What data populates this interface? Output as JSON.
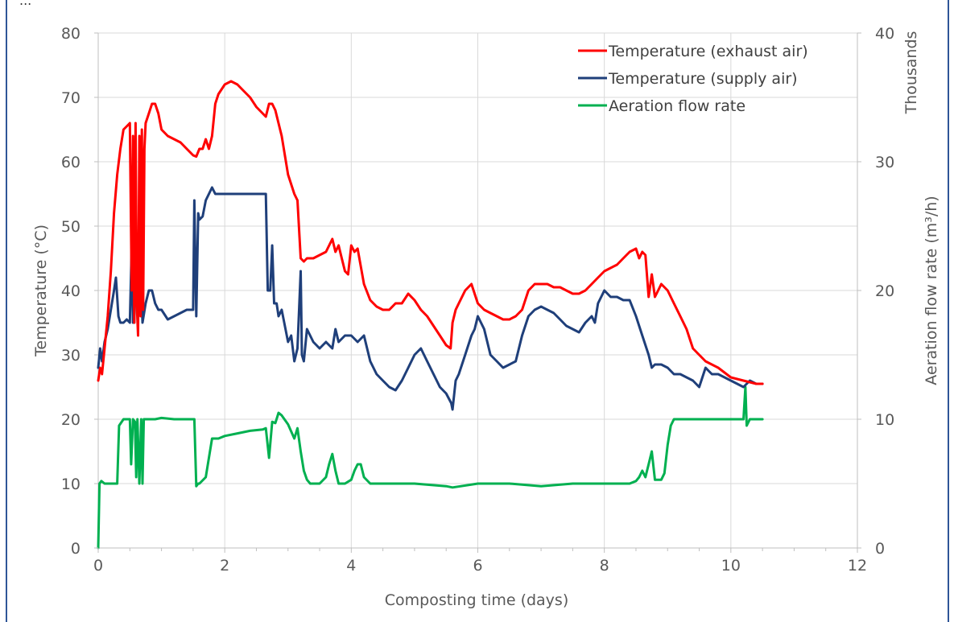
{
  "page": {
    "header_fragment": "...",
    "frame_color": "#2F5597"
  },
  "chart_data": {
    "type": "line",
    "title": "",
    "xlabel": "Composting time (days)",
    "ylabel": "Temperature (°C)",
    "y2label": "Aeration flow rate (m³/h)",
    "y2_units_note": "Thousands",
    "xlim": [
      0,
      12
    ],
    "ylim": [
      0,
      80
    ],
    "y2lim": [
      0,
      40
    ],
    "xticks": [
      "0",
      "2",
      "4",
      "6",
      "8",
      "10",
      "12"
    ],
    "yticks": [
      "0",
      "10",
      "20",
      "30",
      "40",
      "50",
      "60",
      "70",
      "80"
    ],
    "y2ticks": [
      "0",
      "10",
      "20",
      "30",
      "40"
    ],
    "grid": true,
    "legend_position": "top-right",
    "series": [
      {
        "name": "Temperature (exhaust air)",
        "color": "#FF0000",
        "axis": "left",
        "x": [
          0,
          0.03,
          0.06,
          0.1,
          0.15,
          0.2,
          0.25,
          0.3,
          0.35,
          0.4,
          0.45,
          0.5,
          0.53,
          0.55,
          0.57,
          0.59,
          0.61,
          0.63,
          0.65,
          0.67,
          0.69,
          0.71,
          0.73,
          0.75,
          0.8,
          0.85,
          0.9,
          0.95,
          1.0,
          1.1,
          1.2,
          1.3,
          1.4,
          1.5,
          1.55,
          1.6,
          1.65,
          1.7,
          1.75,
          1.8,
          1.85,
          1.9,
          2.0,
          2.1,
          2.2,
          2.3,
          2.4,
          2.5,
          2.6,
          2.65,
          2.7,
          2.75,
          2.8,
          2.9,
          3.0,
          3.1,
          3.15,
          3.2,
          3.25,
          3.3,
          3.4,
          3.5,
          3.6,
          3.7,
          3.75,
          3.8,
          3.85,
          3.9,
          3.95,
          4.0,
          4.05,
          4.1,
          4.2,
          4.3,
          4.4,
          4.5,
          4.6,
          4.7,
          4.8,
          4.9,
          5.0,
          5.1,
          5.2,
          5.3,
          5.4,
          5.5,
          5.57,
          5.6,
          5.65,
          5.7,
          5.8,
          5.9,
          6.0,
          6.1,
          6.2,
          6.3,
          6.4,
          6.5,
          6.6,
          6.7,
          6.8,
          6.9,
          7.0,
          7.1,
          7.2,
          7.3,
          7.4,
          7.5,
          7.6,
          7.7,
          7.8,
          7.9,
          8.0,
          8.1,
          8.2,
          8.3,
          8.4,
          8.5,
          8.55,
          8.6,
          8.65,
          8.7,
          8.75,
          8.8,
          8.85,
          8.9,
          9.0,
          9.1,
          9.2,
          9.3,
          9.4,
          9.5,
          9.6,
          9.8,
          10.0,
          10.2,
          10.4,
          10.5
        ],
        "y": [
          26,
          28,
          27,
          31,
          36,
          43,
          52,
          58,
          62,
          65,
          65.5,
          66,
          40,
          64,
          35,
          66,
          38,
          33,
          64,
          36,
          65,
          37,
          62,
          66,
          67.5,
          69,
          69,
          67.5,
          65,
          64,
          63.5,
          63,
          62,
          61,
          60.8,
          62,
          62,
          63.5,
          62,
          64,
          69,
          70.5,
          72,
          72.5,
          72,
          71,
          70,
          68.5,
          67.5,
          67,
          69,
          69,
          68,
          64,
          58,
          55,
          54,
          45,
          44.5,
          45,
          45,
          45.5,
          46,
          48,
          46,
          47,
          45,
          43,
          42.5,
          47,
          46,
          46.5,
          41,
          38.5,
          37.5,
          37,
          37,
          38,
          38,
          39.5,
          38.5,
          37,
          36,
          34.5,
          33,
          31.5,
          31,
          35,
          37,
          38,
          40,
          41,
          38,
          37,
          36.5,
          36,
          35.5,
          35.5,
          36,
          37,
          40,
          41,
          41,
          41,
          40.5,
          40.5,
          40,
          39.5,
          39.5,
          40,
          41,
          42,
          43,
          43.5,
          44,
          45,
          46,
          46.5,
          45,
          46,
          45.5,
          39,
          42.5,
          39,
          40,
          41,
          40,
          38,
          36,
          34,
          31,
          30,
          29,
          28,
          26.5,
          26,
          25.5,
          25.5
        ]
      },
      {
        "name": "Temperature (supply air)",
        "color": "#1F3F7A",
        "axis": "left",
        "x": [
          0,
          0.03,
          0.06,
          0.1,
          0.15,
          0.2,
          0.25,
          0.28,
          0.32,
          0.35,
          0.4,
          0.45,
          0.5,
          0.53,
          0.55,
          0.57,
          0.6,
          0.63,
          0.66,
          0.7,
          0.75,
          0.8,
          0.85,
          0.9,
          0.95,
          1.0,
          1.1,
          1.2,
          1.3,
          1.4,
          1.5,
          1.52,
          1.55,
          1.58,
          1.6,
          1.65,
          1.7,
          1.75,
          1.8,
          1.85,
          1.9,
          2.0,
          2.2,
          2.4,
          2.6,
          2.65,
          2.68,
          2.72,
          2.75,
          2.78,
          2.82,
          2.85,
          2.9,
          3.0,
          3.05,
          3.1,
          3.15,
          3.2,
          3.22,
          3.25,
          3.3,
          3.4,
          3.5,
          3.6,
          3.7,
          3.75,
          3.8,
          3.9,
          4.0,
          4.1,
          4.2,
          4.3,
          4.4,
          4.5,
          4.6,
          4.7,
          4.8,
          4.9,
          5.0,
          5.1,
          5.2,
          5.3,
          5.4,
          5.5,
          5.58,
          5.6,
          5.65,
          5.7,
          5.8,
          5.9,
          5.95,
          6.0,
          6.1,
          6.2,
          6.3,
          6.4,
          6.5,
          6.6,
          6.7,
          6.8,
          6.9,
          7.0,
          7.1,
          7.2,
          7.3,
          7.4,
          7.5,
          7.6,
          7.7,
          7.8,
          7.85,
          7.9,
          8.0,
          8.1,
          8.2,
          8.3,
          8.4,
          8.5,
          8.6,
          8.7,
          8.75,
          8.8,
          8.9,
          9.0,
          9.1,
          9.2,
          9.4,
          9.5,
          9.6,
          9.65,
          9.7,
          9.8,
          9.9,
          10.0,
          10.1,
          10.2,
          10.3,
          10.4,
          10.5
        ],
        "y": [
          28,
          31,
          29,
          32,
          34,
          37,
          40,
          42,
          36,
          35,
          35,
          35.5,
          35,
          47,
          35,
          35,
          46.5,
          37,
          46.5,
          35,
          38,
          40,
          40,
          38,
          37,
          37,
          35.5,
          36,
          36.5,
          37,
          37,
          54,
          36,
          52,
          51,
          51.5,
          54,
          55,
          56,
          55,
          55,
          55,
          55,
          55,
          55,
          55,
          40,
          40,
          47,
          38,
          38,
          36,
          37,
          32,
          33,
          29,
          31,
          43,
          30,
          29,
          34,
          32,
          31,
          32,
          31,
          34,
          32,
          33,
          33,
          32,
          33,
          29,
          27,
          26,
          25,
          24.5,
          26,
          28,
          30,
          31,
          29,
          27,
          25,
          24,
          22.5,
          21.5,
          26,
          27,
          30,
          33,
          34,
          36,
          34,
          30,
          29,
          28,
          28.5,
          29,
          33,
          36,
          37,
          37.5,
          37,
          36.5,
          35.5,
          34.5,
          34,
          33.5,
          35,
          36,
          35,
          38,
          40,
          39,
          39,
          38.5,
          38.5,
          36,
          33,
          30,
          28,
          28.5,
          28.5,
          28,
          27,
          27,
          26,
          25,
          28,
          27.5,
          27,
          27,
          26.5,
          26,
          25.5,
          25,
          26,
          25.5,
          25.5
        ]
      },
      {
        "name": "Aeration flow rate",
        "color": "#00B050",
        "axis": "right",
        "x": [
          0,
          0.02,
          0.05,
          0.1,
          0.2,
          0.3,
          0.33,
          0.4,
          0.45,
          0.5,
          0.52,
          0.55,
          0.58,
          0.6,
          0.62,
          0.65,
          0.68,
          0.7,
          0.72,
          0.75,
          0.8,
          0.9,
          1.0,
          1.2,
          1.4,
          1.52,
          1.55,
          1.58,
          1.6,
          1.7,
          1.75,
          1.8,
          1.85,
          1.9,
          2.0,
          2.2,
          2.4,
          2.6,
          2.65,
          2.7,
          2.75,
          2.8,
          2.85,
          2.9,
          3.0,
          3.1,
          3.15,
          3.2,
          3.25,
          3.3,
          3.35,
          3.4,
          3.5,
          3.6,
          3.65,
          3.7,
          3.75,
          3.8,
          3.9,
          4.0,
          4.05,
          4.1,
          4.15,
          4.2,
          4.3,
          4.5,
          5.0,
          5.5,
          5.6,
          6.0,
          6.5,
          7.0,
          7.5,
          7.8,
          8.0,
          8.2,
          8.4,
          8.5,
          8.55,
          8.6,
          8.65,
          8.7,
          8.75,
          8.8,
          8.9,
          8.95,
          9.0,
          9.05,
          9.1,
          9.3,
          9.6,
          9.9,
          10.1,
          10.2,
          10.23,
          10.25,
          10.3,
          10.4,
          10.5
        ],
        "y": [
          0,
          5,
          5.2,
          5,
          5,
          5,
          9.5,
          10,
          10,
          10,
          6.5,
          10,
          9.8,
          5.5,
          10,
          5,
          10,
          5,
          10,
          10,
          10,
          10,
          10.1,
          10,
          10,
          10,
          4.8,
          5,
          5,
          5.5,
          7,
          8.5,
          8.5,
          8.5,
          8.7,
          8.9,
          9.1,
          9.2,
          9.3,
          7,
          9.8,
          9.7,
          10.5,
          10.3,
          9.6,
          8.5,
          9.3,
          7.5,
          6,
          5.3,
          5,
          5,
          5,
          5.5,
          6.5,
          7.3,
          6,
          5,
          5,
          5.3,
          6,
          6.5,
          6.5,
          5.5,
          5,
          5,
          5,
          4.8,
          4.7,
          5,
          5,
          4.8,
          5,
          5,
          5,
          5,
          5,
          5.2,
          5.5,
          6,
          5.5,
          6.5,
          7.5,
          5.3,
          5.3,
          5.8,
          8,
          9.5,
          10,
          10,
          10,
          10,
          10,
          10,
          12.5,
          9.5,
          10,
          10,
          10
        ]
      }
    ]
  }
}
